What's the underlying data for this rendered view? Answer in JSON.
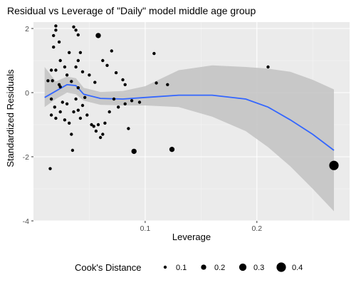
{
  "chart_data": {
    "type": "scatter",
    "title": "Residual vs Leverage of \"Daily\" model middle age group",
    "xlabel": "Leverage",
    "ylabel": "Standardized Residuals",
    "xlim": [
      0.0,
      0.283
    ],
    "ylim": [
      -4.0,
      2.2
    ],
    "x_ticks": [
      0.1,
      0.2
    ],
    "x_tick_labels": [
      "0.1",
      "0.2"
    ],
    "y_ticks": [
      -4,
      -2,
      0,
      2
    ],
    "y_tick_labels": [
      "-4",
      "-2",
      "0",
      "2"
    ],
    "grid": true,
    "panel_background": "#ebebeb",
    "smooth_color": "#3366ff",
    "ribbon_color": "#c2c2c2",
    "point_color": "#000000",
    "points": [
      {
        "x": 0.018,
        "y": 1.78,
        "cook": 0.1
      },
      {
        "x": 0.02,
        "y": 2.08,
        "cook": 0.1
      },
      {
        "x": 0.02,
        "y": 1.95,
        "cook": 0.1
      },
      {
        "x": 0.023,
        "y": 1.58,
        "cook": 0.1
      },
      {
        "x": 0.018,
        "y": 1.42,
        "cook": 0.1
      },
      {
        "x": 0.024,
        "y": 1.0,
        "cook": 0.1
      },
      {
        "x": 0.016,
        "y": 0.7,
        "cook": 0.1
      },
      {
        "x": 0.02,
        "y": 0.7,
        "cook": 0.1
      },
      {
        "x": 0.013,
        "y": 0.37,
        "cook": 0.1
      },
      {
        "x": 0.017,
        "y": 0.37,
        "cook": 0.1
      },
      {
        "x": 0.023,
        "y": 0.25,
        "cook": 0.1
      },
      {
        "x": 0.028,
        "y": 0.8,
        "cook": 0.1
      },
      {
        "x": 0.03,
        "y": 0.55,
        "cook": 0.1
      },
      {
        "x": 0.032,
        "y": 1.25,
        "cook": 0.1
      },
      {
        "x": 0.034,
        "y": 0.35,
        "cook": 0.1
      },
      {
        "x": 0.036,
        "y": 2.05,
        "cook": 0.1
      },
      {
        "x": 0.038,
        "y": 1.95,
        "cook": 0.1
      },
      {
        "x": 0.04,
        "y": 1.8,
        "cook": 0.1
      },
      {
        "x": 0.042,
        "y": 1.25,
        "cook": 0.1
      },
      {
        "x": 0.04,
        "y": 1.0,
        "cook": 0.1
      },
      {
        "x": 0.038,
        "y": 0.8,
        "cook": 0.1
      },
      {
        "x": 0.044,
        "y": 0.65,
        "cook": 0.1
      },
      {
        "x": 0.05,
        "y": 0.55,
        "cook": 0.1
      },
      {
        "x": 0.055,
        "y": 0.32,
        "cook": 0.1
      },
      {
        "x": 0.062,
        "y": 1.0,
        "cook": 0.1
      },
      {
        "x": 0.066,
        "y": 0.85,
        "cook": 0.1
      },
      {
        "x": 0.07,
        "y": 1.3,
        "cook": 0.1
      },
      {
        "x": 0.074,
        "y": 0.62,
        "cook": 0.1
      },
      {
        "x": 0.08,
        "y": 0.4,
        "cook": 0.1
      },
      {
        "x": 0.082,
        "y": 0.25,
        "cook": 0.1
      },
      {
        "x": 0.058,
        "y": 1.78,
        "cook": 0.2
      },
      {
        "x": 0.04,
        "y": 0.15,
        "cook": 0.1
      },
      {
        "x": 0.024,
        "y": 0.18,
        "cook": 0.1
      },
      {
        "x": 0.016,
        "y": -0.2,
        "cook": 0.1
      },
      {
        "x": 0.019,
        "y": -0.45,
        "cook": 0.1
      },
      {
        "x": 0.016,
        "y": -0.7,
        "cook": 0.1
      },
      {
        "x": 0.02,
        "y": -0.8,
        "cook": 0.1
      },
      {
        "x": 0.024,
        "y": -0.6,
        "cook": 0.1
      },
      {
        "x": 0.026,
        "y": -0.3,
        "cook": 0.1
      },
      {
        "x": 0.03,
        "y": -0.35,
        "cook": 0.1
      },
      {
        "x": 0.028,
        "y": -0.85,
        "cook": 0.1
      },
      {
        "x": 0.032,
        "y": -0.95,
        "cook": 0.1
      },
      {
        "x": 0.034,
        "y": -1.3,
        "cook": 0.1
      },
      {
        "x": 0.036,
        "y": -0.6,
        "cook": 0.1
      },
      {
        "x": 0.038,
        "y": -0.2,
        "cook": 0.1
      },
      {
        "x": 0.04,
        "y": -0.55,
        "cook": 0.1
      },
      {
        "x": 0.042,
        "y": -0.8,
        "cook": 0.1
      },
      {
        "x": 0.044,
        "y": -0.4,
        "cook": 0.1
      },
      {
        "x": 0.046,
        "y": -0.15,
        "cook": 0.1
      },
      {
        "x": 0.048,
        "y": -0.7,
        "cook": 0.1
      },
      {
        "x": 0.052,
        "y": -1.0,
        "cook": 0.1
      },
      {
        "x": 0.054,
        "y": -1.05,
        "cook": 0.1
      },
      {
        "x": 0.056,
        "y": -1.2,
        "cook": 0.1
      },
      {
        "x": 0.058,
        "y": -1.0,
        "cook": 0.1
      },
      {
        "x": 0.06,
        "y": -1.4,
        "cook": 0.1
      },
      {
        "x": 0.062,
        "y": -1.3,
        "cook": 0.1
      },
      {
        "x": 0.064,
        "y": -0.95,
        "cook": 0.1
      },
      {
        "x": 0.068,
        "y": -0.6,
        "cook": 0.1
      },
      {
        "x": 0.072,
        "y": -0.2,
        "cook": 0.1
      },
      {
        "x": 0.076,
        "y": -0.45,
        "cook": 0.1
      },
      {
        "x": 0.082,
        "y": -0.35,
        "cook": 0.1
      },
      {
        "x": 0.088,
        "y": -0.25,
        "cook": 0.1
      },
      {
        "x": 0.095,
        "y": -0.3,
        "cook": 0.1
      },
      {
        "x": 0.035,
        "y": -1.8,
        "cook": 0.1
      },
      {
        "x": 0.015,
        "y": -2.37,
        "cook": 0.1
      },
      {
        "x": 0.085,
        "y": -1.12,
        "cook": 0.1
      },
      {
        "x": 0.108,
        "y": 1.22,
        "cook": 0.1
      },
      {
        "x": 0.11,
        "y": 0.3,
        "cook": 0.1
      },
      {
        "x": 0.12,
        "y": 0.25,
        "cook": 0.1
      },
      {
        "x": 0.09,
        "y": -1.83,
        "cook": 0.2
      },
      {
        "x": 0.124,
        "y": -1.77,
        "cook": 0.2
      },
      {
        "x": 0.21,
        "y": 0.8,
        "cook": 0.1
      },
      {
        "x": 0.269,
        "y": -2.27,
        "cook": 0.4
      }
    ],
    "smooth_line": {
      "x": [
        0.01,
        0.02,
        0.03,
        0.038,
        0.045,
        0.06,
        0.08,
        0.1,
        0.13,
        0.16,
        0.19,
        0.21,
        0.23,
        0.25,
        0.269
      ],
      "y": [
        -0.15,
        0.05,
        0.25,
        0.22,
        -0.05,
        -0.18,
        -0.2,
        -0.15,
        -0.08,
        -0.08,
        -0.2,
        -0.45,
        -0.85,
        -1.3,
        -1.8
      ],
      "ymin": [
        -0.45,
        -0.2,
        0.0,
        -0.05,
        -0.25,
        -0.38,
        -0.4,
        -0.4,
        -0.45,
        -0.75,
        -1.2,
        -1.7,
        -2.3,
        -3.0,
        -3.7
      ],
      "ymax": [
        0.8,
        0.35,
        0.5,
        0.45,
        0.15,
        0.02,
        0.05,
        0.2,
        0.7,
        0.85,
        0.8,
        0.75,
        0.65,
        0.4,
        0.1
      ]
    },
    "legend": {
      "title": "Cook's Distance",
      "position": "bottom",
      "entries": [
        {
          "label": "0.1",
          "value": 0.1
        },
        {
          "label": "0.2",
          "value": 0.2
        },
        {
          "label": "0.3",
          "value": 0.3
        },
        {
          "label": "0.4",
          "value": 0.4
        }
      ]
    }
  }
}
